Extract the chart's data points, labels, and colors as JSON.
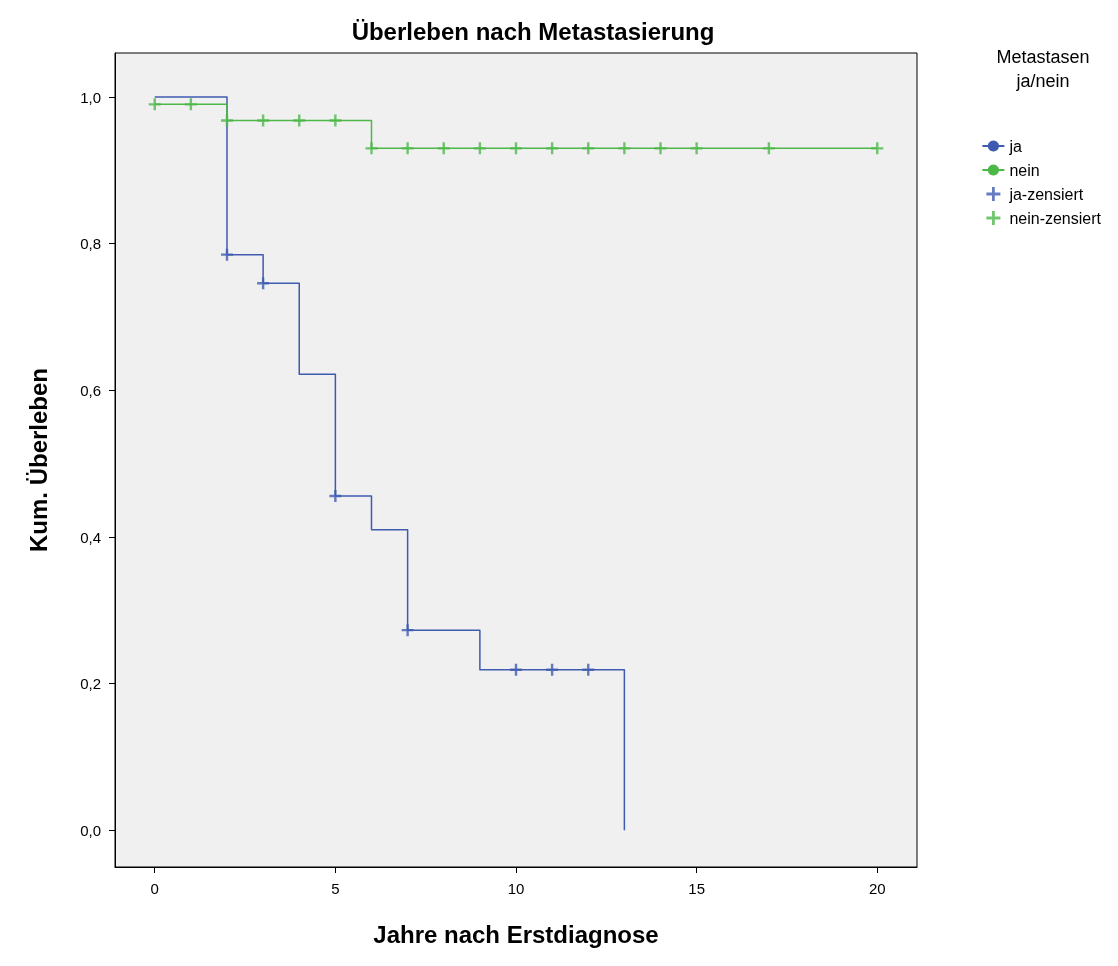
{
  "chart_data": {
    "type": "step",
    "title": "Überleben nach Metastasierung",
    "xlabel": "Jahre nach Erstdiagnose",
    "ylabel": "Kum. Überleben",
    "legend_title": "Metastasen ja/nein",
    "legend": "top right",
    "grid": false,
    "xlim": [
      -1.1,
      21.1
    ],
    "xticks": [
      0,
      5,
      10,
      15,
      20
    ],
    "ylim": [
      -0.05,
      1.06
    ],
    "yticks": [
      {
        "value": 0,
        "label": "0,0"
      },
      {
        "value": 0.2,
        "label": "0,2"
      },
      {
        "value": 0.4,
        "label": "0,4"
      },
      {
        "value": 0.6,
        "label": "0,6"
      },
      {
        "value": 0.8,
        "label": "0,8"
      },
      {
        "value": 1,
        "label": "1,0"
      }
    ],
    "series": [
      {
        "name": "ja",
        "color": "#3f5bb0",
        "x": [
          0,
          2,
          3,
          4,
          5,
          6,
          7,
          9,
          13
        ],
        "values": [
          1,
          0.785,
          0.746,
          0.622,
          0.456,
          0.41,
          0.273,
          0.219,
          0
        ]
      },
      {
        "name": "nein",
        "color": "#4cb848",
        "x": [
          0,
          2,
          6,
          20
        ],
        "values": [
          0.99,
          0.968,
          0.93,
          0.93
        ]
      },
      {
        "name": "ja-zensiert",
        "type": "scatter",
        "marker": "cross",
        "color": "#3f5bb0",
        "x": [
          2,
          3,
          5,
          7,
          10,
          11,
          12
        ],
        "values": [
          0.785,
          0.746,
          0.456,
          0.273,
          0.219,
          0.219,
          0.219
        ]
      },
      {
        "name": "nein-zensiert",
        "type": "scatter",
        "marker": "cross",
        "color": "#4cb848",
        "x": [
          0,
          1,
          2,
          3,
          4,
          5,
          6,
          7,
          8,
          9,
          10,
          11,
          12,
          13,
          14,
          15,
          17,
          20
        ],
        "values": [
          0.99,
          0.99,
          0.968,
          0.968,
          0.968,
          0.968,
          0.93,
          0.93,
          0.93,
          0.93,
          0.93,
          0.93,
          0.93,
          0.93,
          0.93,
          0.93,
          0.93,
          0.93
        ]
      }
    ]
  }
}
